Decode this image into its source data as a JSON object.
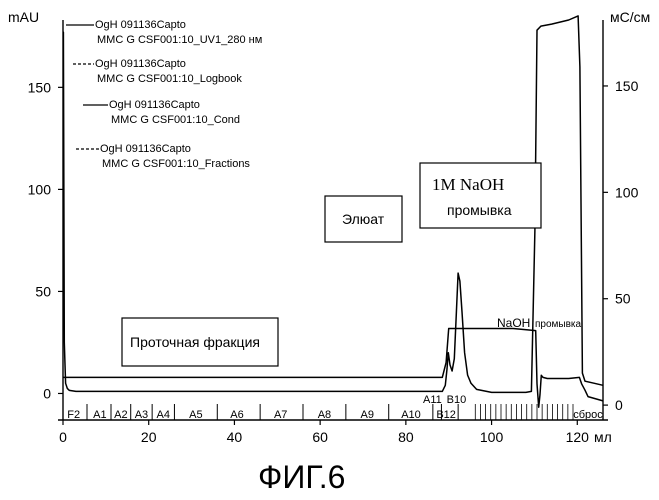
{
  "figure": {
    "caption": "ФИГ.6"
  },
  "chart_data": {
    "type": "line",
    "x_axis": {
      "label": "мл",
      "ticks": [
        0,
        20,
        40,
        60,
        80,
        100,
        120
      ],
      "range": [
        0,
        126
      ]
    },
    "y_left": {
      "label": "mAU",
      "ticks": [
        0,
        50,
        100,
        150
      ],
      "range": [
        -13,
        183
      ]
    },
    "y_right": {
      "label": "мС/см",
      "ticks": [
        0,
        50,
        100,
        150
      ],
      "range": [
        -7,
        181
      ]
    },
    "series": [
      {
        "name": "UV1_280",
        "axis": "left",
        "x": [
          0,
          0.1,
          0.3,
          0.6,
          1.0,
          1.5,
          3,
          20,
          60,
          88.5,
          89.2,
          89.6,
          89.9,
          90.3,
          90.8,
          91.3,
          91.8,
          92.2,
          92.6,
          93.1,
          93.7,
          94.4,
          95.2,
          96.5,
          100,
          108,
          109.3,
          110.1,
          110.6,
          111.5,
          114,
          118,
          120.2,
          120.6,
          121.2,
          121.8,
          124,
          126
        ],
        "y": [
          177,
          177,
          25,
          5,
          2.5,
          1.5,
          1,
          1,
          1,
          1,
          4,
          12,
          20,
          14,
          11,
          17,
          40,
          59,
          55,
          40,
          20,
          9,
          5,
          2,
          0.5,
          0.5,
          1,
          80,
          178,
          180,
          181,
          183,
          185,
          160,
          10,
          6,
          5,
          4
        ]
      },
      {
        "name": "Cond",
        "axis": "right",
        "x": [
          0,
          30,
          60,
          88.5,
          89.4,
          90,
          105,
          110.3,
          110.6,
          111.0,
          111.3,
          111.6,
          112.0,
          113,
          118,
          120.5,
          121,
          121.8,
          122.5,
          126
        ],
        "y": [
          13,
          13,
          13,
          13,
          20,
          36,
          36,
          35,
          10,
          -1,
          5,
          14,
          13,
          12.5,
          12.5,
          13,
          10,
          7,
          4,
          2
        ]
      }
    ],
    "legend": [
      {
        "line1": "OgH 091136Capto",
        "line2": "MMC G CSF001:10_UV1_280 нм",
        "style": "solid"
      },
      {
        "line1": "OgH 091136Capto",
        "line2": "MMC G CSF001:10_Logbook",
        "style": "dashed"
      },
      {
        "line1": "OgH 091136Capto",
        "line2": "MMC G CSF001:10_Cond",
        "style": "solid"
      },
      {
        "line1": "OgH 091136Capto",
        "line2": "MMC G CSF001:10_Fractions",
        "style": "dashed"
      }
    ],
    "fractions": [
      {
        "label": "F2",
        "x": 2.5
      },
      {
        "label": "A1",
        "x": 8.6
      },
      {
        "label": "A2",
        "x": 13.5
      },
      {
        "label": "A3",
        "x": 18.3
      },
      {
        "label": "A4",
        "x": 23.4
      },
      {
        "label": "A5",
        "x": 31
      },
      {
        "label": "A6",
        "x": 40.6
      },
      {
        "label": "A7",
        "x": 50.8
      },
      {
        "label": "A8",
        "x": 61
      },
      {
        "label": "A9",
        "x": 71
      },
      {
        "label": "A10",
        "x": 81.2
      },
      {
        "label": "B12",
        "x": 89.4
      }
    ],
    "fraction_dividers": [
      5.6,
      11.2,
      15.8,
      20.8,
      26,
      36,
      46,
      56,
      66,
      76,
      86.3,
      88.3,
      92.2
    ],
    "fraction_ticks_dense": [
      96.2,
      97.4,
      98.6,
      99.8,
      101,
      102.2,
      103.4,
      104.6,
      105.8,
      107,
      108.2,
      109.4,
      110.6,
      111.8,
      113,
      114.2,
      115.4,
      116.6,
      117.8,
      119
    ],
    "fraction_labels_above": [
      {
        "label": "A11",
        "x": 86.2
      },
      {
        "label": "B10",
        "x": 91.8
      }
    ],
    "sbros_label": "сброс",
    "sbros_x": 122.5,
    "annotations": {
      "flow_through": "Проточная фракция",
      "eluate": "Элюат",
      "naoh_title": "1M NaOH",
      "naoh_sub": "промывка",
      "naoh_small_a": "NaOH",
      "naoh_small_b": "промывка"
    }
  }
}
